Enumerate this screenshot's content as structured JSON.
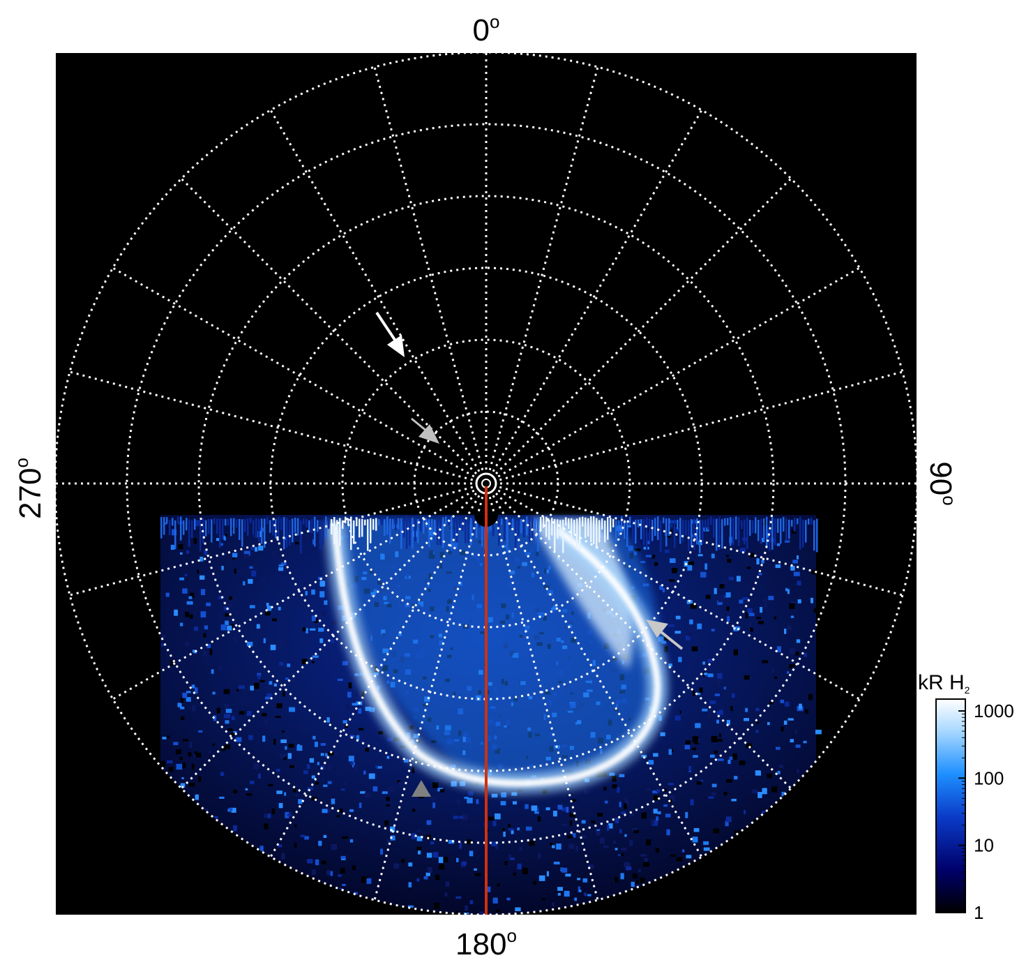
{
  "chart_data": {
    "type": "heatmap",
    "title": "",
    "projection": "polar",
    "longitude_labels": [
      {
        "value": "0",
        "unit": "o",
        "position": "top"
      },
      {
        "value": "90",
        "unit": "o",
        "position": "right"
      },
      {
        "value": "180",
        "unit": "o",
        "position": "bottom"
      },
      {
        "value": "270",
        "unit": "o",
        "position": "left"
      }
    ],
    "longitude_grid_step_deg": 15,
    "latitude_rings": 6,
    "grid": "dotted-white",
    "colorbar": {
      "title_main": "kR H",
      "title_sub": "2",
      "scale": "log",
      "range": [
        1,
        1500
      ],
      "ticks": [
        {
          "value": 1,
          "label": "1"
        },
        {
          "value": 10,
          "label": "10"
        },
        {
          "value": 100,
          "label": "100"
        },
        {
          "value": 1000,
          "label": "1000"
        }
      ],
      "colors": [
        "#000000",
        "#00006b",
        "#0a3cc8",
        "#1e90ff",
        "#a8d8ff",
        "#ffffff"
      ]
    },
    "meridian_line": {
      "longitude": 180,
      "color": "#d03010"
    },
    "annotations": [
      {
        "name": "arrow-white-upper",
        "color": "#ffffff"
      },
      {
        "name": "arrow-gray-near-pole",
        "color": "#c0c0c0"
      },
      {
        "name": "arrow-gray-right",
        "color": "#c8c8c8"
      },
      {
        "name": "arrowhead-gray-lower",
        "color": "#808080"
      }
    ]
  }
}
